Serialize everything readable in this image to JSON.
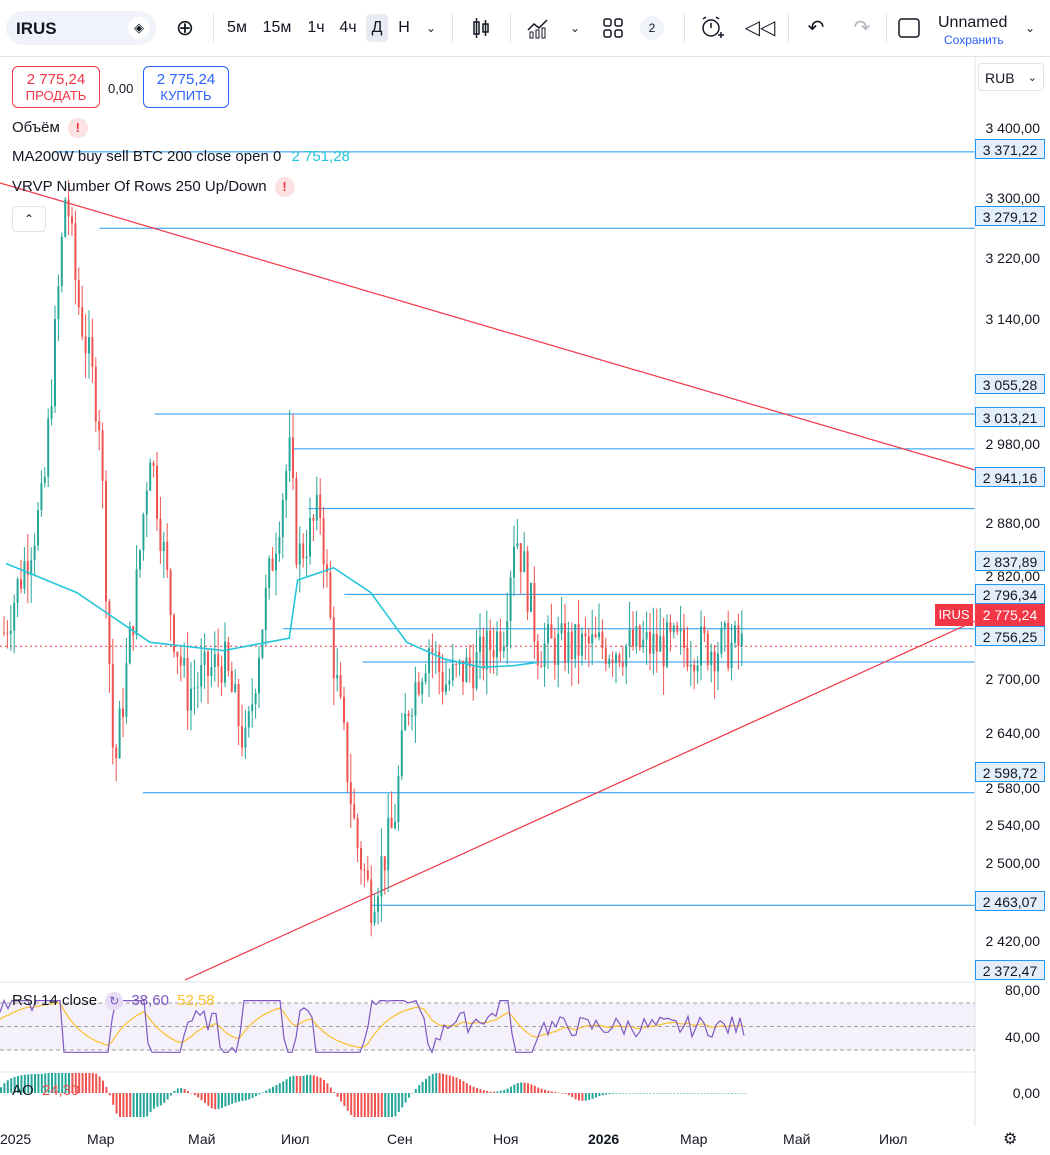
{
  "toolbar": {
    "symbol": "IRUS",
    "intervals": [
      "5м",
      "15м",
      "1ч",
      "4ч",
      "Д",
      "Н"
    ],
    "active_interval": "Д",
    "layout_count": "2",
    "layout_name": "Unnamed",
    "save_label": "Сохранить",
    "icons": [
      "add-symbol-icon",
      "bar-style-icon",
      "indicators-icon",
      "templates-icon",
      "alert-icon",
      "replay-icon",
      "undo-icon",
      "redo-icon",
      "layout-icon"
    ]
  },
  "trade": {
    "sell_price": "2 775,24",
    "sell_label": "ПРОДАТЬ",
    "spread": "0,00",
    "buy_price": "2 775,24",
    "buy_label": "КУПИТЬ",
    "currency": "RUB"
  },
  "legends": {
    "volume": "Объём",
    "ma": "MA200W buy sell BTC 200 close open 0",
    "ma_value": "2 751,28",
    "vrvp": "VRVP Number Of Rows 250 Up/Down",
    "rsi": "RSI 14 close",
    "rsi_value": "38,60",
    "rsi_ma_value": "52,58",
    "ao": "AO",
    "ao_value": "24,30"
  },
  "price_axis": [
    "3 400,00",
    "3 300,00",
    "3 220,00",
    "3 140,00",
    "2 980,00",
    "2 880,00",
    "2 820,00",
    "2 700,00",
    "2 640,00",
    "2 580,00",
    "2 540,00",
    "2 500,00",
    "2 420,00"
  ],
  "horizontal_levels": [
    "3 371,22",
    "3 279,12",
    "3 055,28",
    "3 013,21",
    "2 941,16",
    "2 837,89",
    "2 796,34",
    "2 756,25",
    "2 598,72",
    "2 463,07",
    "2 372,47"
  ],
  "last_price": "2 775,24",
  "rsi_axis": [
    "80,00",
    "40,00"
  ],
  "ao_axis": [
    "0,00"
  ],
  "time_axis": [
    "2025",
    "Мар",
    "Май",
    "Июл",
    "Сен",
    "Ноя",
    "2026",
    "Мар",
    "Май",
    "Июл"
  ],
  "colors": {
    "up": "#26a69a",
    "down": "#ef5350",
    "ma": "#26c6da",
    "level": "#2196f3",
    "trendline": "#f23645",
    "rsi": "#7e57c2",
    "rsi_ma": "#fbc02d"
  },
  "chart_data": {
    "type": "candlestick",
    "symbol": "IRUS",
    "currency": "RUB",
    "timeframe": "Д",
    "last_price": 2775.24,
    "ylim": [
      2340,
      3440
    ],
    "levels": [
      3371.22,
      3279.12,
      3055.28,
      3013.21,
      2941.16,
      2837.89,
      2796.34,
      2756.25,
      2598.72,
      2463.07,
      2372.47
    ],
    "price_path": [
      [
        "2025-01",
        2800
      ],
      [
        "2025-02",
        2950
      ],
      [
        "2025-02-20",
        3330
      ],
      [
        "2025-03",
        3200
      ],
      [
        "2025-03-20",
        3050
      ],
      [
        "2025-04",
        2620
      ],
      [
        "2025-04-20",
        2850
      ],
      [
        "2025-05",
        3020
      ],
      [
        "2025-05-20",
        2800
      ],
      [
        "2025-06",
        2720
      ],
      [
        "2025-07",
        2760
      ],
      [
        "2025-07-20",
        2650
      ],
      [
        "2025-08",
        2790
      ],
      [
        "2025-08-25",
        3010
      ],
      [
        "2025-09",
        2880
      ],
      [
        "2025-09-20",
        2940
      ],
      [
        "2025-10",
        2760
      ],
      [
        "2025-10-20",
        2540
      ],
      [
        "2025-11",
        2470
      ],
      [
        "2025-11-20",
        2560
      ],
      [
        "2025-12",
        2700
      ],
      [
        "2025-12-20",
        2780
      ],
      [
        "2026-01",
        2730
      ],
      [
        "2026-02",
        2760
      ],
      [
        "2026-02-20",
        2800
      ],
      [
        "2026-03",
        2920
      ],
      [
        "2026-03-10",
        2860
      ],
      [
        "2026-03-20",
        2775
      ]
    ],
    "ma": [
      [
        "2025-01",
        2875
      ],
      [
        "2025-03",
        2840
      ],
      [
        "2025-05",
        2780
      ],
      [
        "2025-07",
        2770
      ],
      [
        "2025-08-25",
        2785
      ],
      [
        "2025-09",
        2855
      ],
      [
        "2025-10",
        2870
      ],
      [
        "2025-11",
        2840
      ],
      [
        "2025-12",
        2780
      ],
      [
        "2026-01",
        2760
      ],
      [
        "2026-02",
        2750
      ],
      [
        "2026-03",
        2752
      ],
      [
        "2026-03-20",
        2756
      ]
    ],
    "rsi": {
      "value": 38.6,
      "ma": 52.58,
      "ylim": [
        20,
        80
      ]
    },
    "ao": {
      "value": 24.3
    }
  }
}
